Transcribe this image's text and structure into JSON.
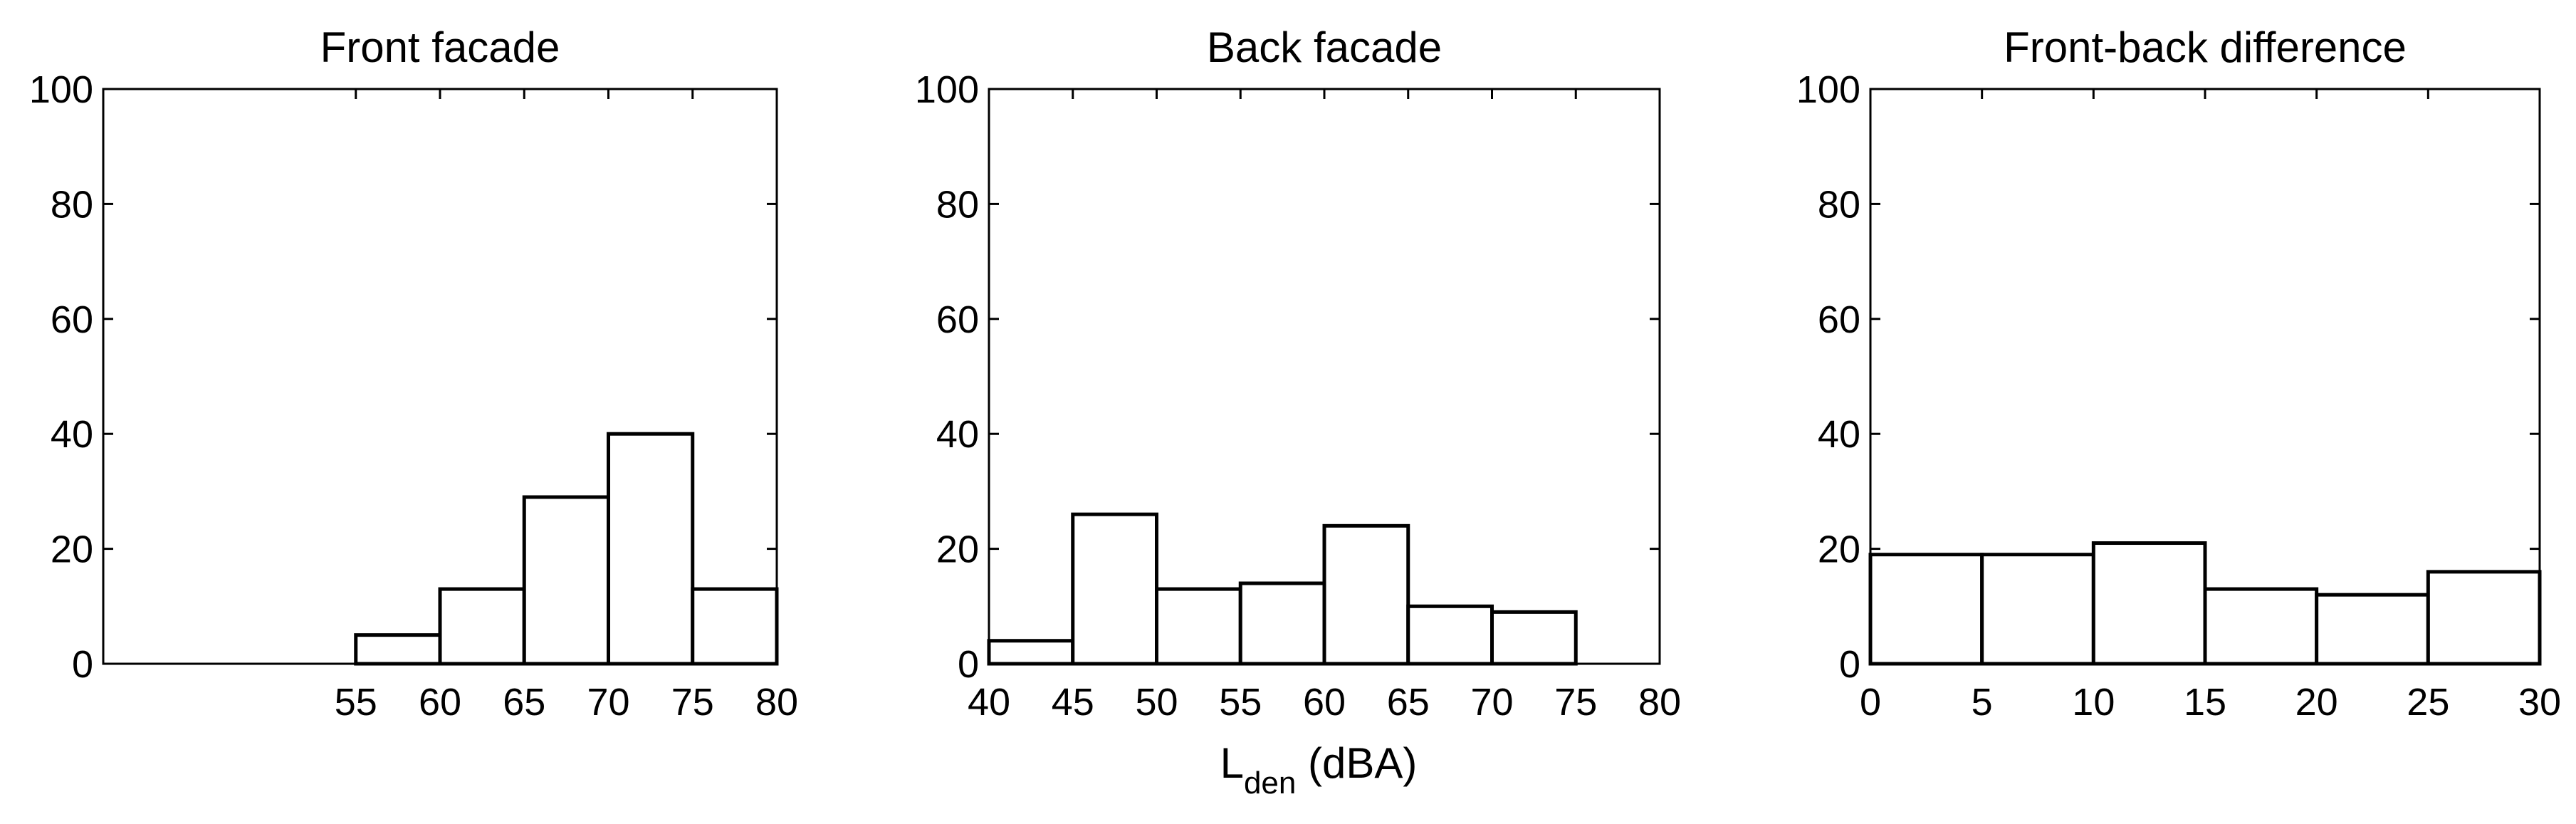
{
  "chart_data": [
    {
      "type": "bar",
      "title": "Front facade",
      "x_ticks": [
        "55",
        "60",
        "65",
        "70",
        "75",
        "80"
      ],
      "y_ticks": [
        "0",
        "20",
        "40",
        "60",
        "80",
        "100"
      ],
      "ylim": [
        0,
        100
      ],
      "bins": [
        {
          "from": 55,
          "to": 60,
          "value": 5
        },
        {
          "from": 60,
          "to": 65,
          "value": 13
        },
        {
          "from": 65,
          "to": 70,
          "value": 29
        },
        {
          "from": 70,
          "to": 75,
          "value": 40
        },
        {
          "from": 75,
          "to": 80,
          "value": 13
        }
      ]
    },
    {
      "type": "bar",
      "title": "Back facade",
      "x_ticks": [
        "40",
        "45",
        "50",
        "55",
        "60",
        "65",
        "70",
        "75",
        "80"
      ],
      "y_ticks": [
        "0",
        "20",
        "40",
        "60",
        "80",
        "100"
      ],
      "ylim": [
        0,
        100
      ],
      "xlim": [
        40,
        80
      ],
      "xlabel": {
        "main": "L",
        "subscript": "den",
        "suffix": " (dBA)"
      },
      "bins": [
        {
          "from": 40,
          "to": 45,
          "value": 4
        },
        {
          "from": 45,
          "to": 50,
          "value": 26
        },
        {
          "from": 50,
          "to": 55,
          "value": 13
        },
        {
          "from": 55,
          "to": 60,
          "value": 14
        },
        {
          "from": 60,
          "to": 65,
          "value": 24
        },
        {
          "from": 65,
          "to": 70,
          "value": 10
        },
        {
          "from": 70,
          "to": 75,
          "value": 9
        }
      ]
    },
    {
      "type": "bar",
      "title": "Front-back difference",
      "x_ticks": [
        "0",
        "5",
        "10",
        "15",
        "20",
        "25",
        "30"
      ],
      "y_ticks": [
        "0",
        "20",
        "40",
        "60",
        "80",
        "100"
      ],
      "ylim": [
        0,
        100
      ],
      "xlim": [
        0,
        30
      ],
      "bins": [
        {
          "from": 0,
          "to": 5,
          "value": 19
        },
        {
          "from": 5,
          "to": 10,
          "value": 19
        },
        {
          "from": 10,
          "to": 15,
          "value": 21
        },
        {
          "from": 15,
          "to": 20,
          "value": 13
        },
        {
          "from": 20,
          "to": 25,
          "value": 12
        },
        {
          "from": 25,
          "to": 30,
          "value": 16
        }
      ]
    }
  ]
}
